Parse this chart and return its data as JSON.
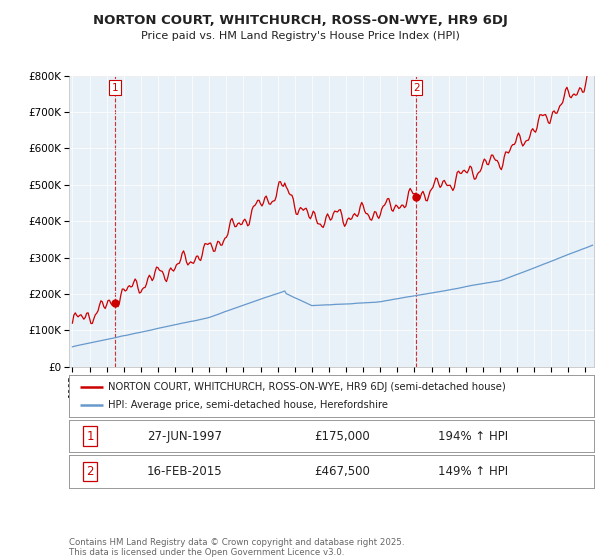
{
  "title_line1": "NORTON COURT, WHITCHURCH, ROSS-ON-WYE, HR9 6DJ",
  "title_line2": "Price paid vs. HM Land Registry's House Price Index (HPI)",
  "ylabel_ticks": [
    "£0",
    "£100K",
    "£200K",
    "£300K",
    "£400K",
    "£500K",
    "£600K",
    "£700K",
    "£800K"
  ],
  "ylabel_values": [
    0,
    100000,
    200000,
    300000,
    400000,
    500000,
    600000,
    700000,
    800000
  ],
  "ylim": [
    0,
    800000
  ],
  "xlim_start": 1994.8,
  "xlim_end": 2025.5,
  "sale1_x": 1997.49,
  "sale1_y": 175000,
  "sale2_x": 2015.12,
  "sale2_y": 467500,
  "sale1_label": "1",
  "sale2_label": "2",
  "sale1_date": "27-JUN-1997",
  "sale1_price": "£175,000",
  "sale1_hpi": "194% ↑ HPI",
  "sale2_date": "16-FEB-2015",
  "sale2_price": "£467,500",
  "sale2_hpi": "149% ↑ HPI",
  "legend_line1": "NORTON COURT, WHITCHURCH, ROSS-ON-WYE, HR9 6DJ (semi-detached house)",
  "legend_line2": "HPI: Average price, semi-detached house, Herefordshire",
  "footer": "Contains HM Land Registry data © Crown copyright and database right 2025.\nThis data is licensed under the Open Government Licence v3.0.",
  "red_color": "#cc0000",
  "blue_color": "#6699cc",
  "chart_bg": "#e8f0f8",
  "background_color": "#ffffff",
  "grid_color": "#cccccc"
}
